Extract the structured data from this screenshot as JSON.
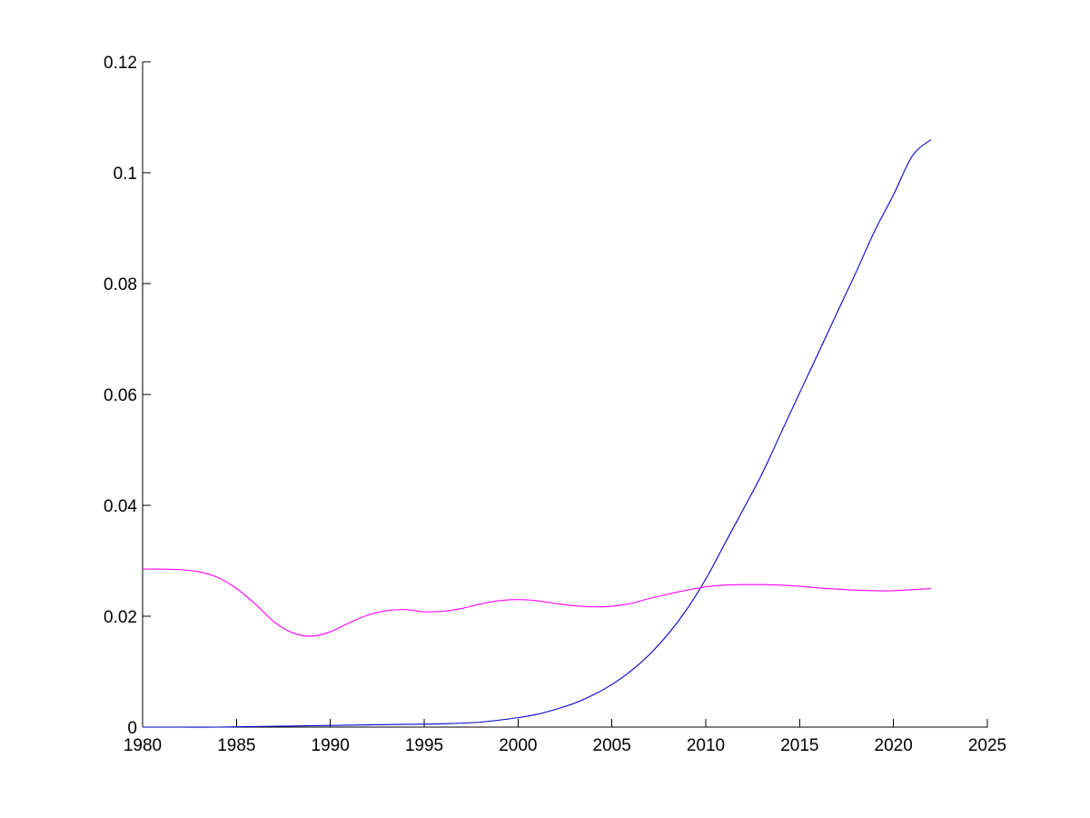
{
  "chart_data": {
    "type": "line",
    "title": "",
    "xlabel": "",
    "ylabel": "",
    "xlim": [
      1980,
      2025
    ],
    "ylim": [
      0,
      0.12
    ],
    "grid": false,
    "legend": "none",
    "x_ticks": [
      1980,
      1985,
      1990,
      1995,
      2000,
      2005,
      2010,
      2015,
      2020,
      2025
    ],
    "x_tick_labels": [
      "1980",
      "1985",
      "1990",
      "1995",
      "2000",
      "2005",
      "2010",
      "2015",
      "2020",
      "2025"
    ],
    "y_ticks": [
      0,
      0.02,
      0.04,
      0.06,
      0.08,
      0.1,
      0.12
    ],
    "y_tick_labels": [
      "0",
      "0.02",
      "0.04",
      "0.06",
      "0.08",
      "0.1",
      "0.12"
    ],
    "series": [
      {
        "color": "#0000cc",
        "x": [
          1980,
          1982,
          1984,
          1986,
          1988,
          1990,
          1992,
          1994,
          1996,
          1998,
          2000,
          2001,
          2002,
          2003,
          2004,
          2005,
          2006,
          2007,
          2008,
          2009,
          2010,
          2011,
          2012,
          2013,
          2014,
          2015,
          2016,
          2017,
          2018,
          2019,
          2020,
          2021,
          2022
        ],
        "y": [
          0,
          0,
          0,
          0.0001,
          0.0002,
          0.0003,
          0.0004,
          0.0005,
          0.0006,
          0.0009,
          0.0017,
          0.0023,
          0.0032,
          0.0043,
          0.0058,
          0.0077,
          0.0101,
          0.0131,
          0.0168,
          0.0213,
          0.0267,
          0.033,
          0.0393,
          0.0457,
          0.053,
          0.0603,
          0.0675,
          0.0748,
          0.082,
          0.0895,
          0.096,
          0.103,
          0.106
        ]
      },
      {
        "color": "#ff00ff",
        "x": [
          1980,
          1981,
          1982,
          1983,
          1984,
          1985,
          1986,
          1987,
          1988,
          1989,
          1990,
          1991,
          1992,
          1993,
          1994,
          1995,
          1996,
          1997,
          1998,
          1999,
          2000,
          2001,
          2002,
          2003,
          2004,
          2005,
          2006,
          2007,
          2008,
          2009,
          2010,
          2011,
          2012,
          2013,
          2014,
          2015,
          2016,
          2017,
          2018,
          2019,
          2020,
          2021,
          2022
        ],
        "y": [
          0.0285,
          0.0285,
          0.0284,
          0.028,
          0.027,
          0.025,
          0.0222,
          0.019,
          0.017,
          0.0164,
          0.0172,
          0.0188,
          0.0202,
          0.021,
          0.0212,
          0.0208,
          0.0209,
          0.0214,
          0.0222,
          0.0228,
          0.023,
          0.0228,
          0.0223,
          0.0219,
          0.0217,
          0.0218,
          0.0223,
          0.0232,
          0.024,
          0.0247,
          0.0253,
          0.0256,
          0.0257,
          0.0257,
          0.0256,
          0.0254,
          0.0251,
          0.0249,
          0.0247,
          0.0246,
          0.0246,
          0.0248,
          0.025
        ]
      }
    ]
  }
}
